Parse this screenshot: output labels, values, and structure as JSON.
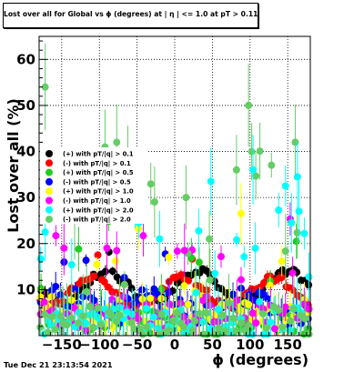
{
  "window": {
    "footer_timestamp": "Tue Dec 21 23:13:54 2021"
  },
  "chart_data": {
    "type": "scatter",
    "title": "Lost over all for Global vs ϕ (degrees) at | η | <= 1.0 at pT > 0.11",
    "xlabel": "ϕ (degrees)",
    "ylabel": "Lost over all (%)",
    "xlim": [
      -180,
      180
    ],
    "ylim": [
      0,
      65
    ],
    "x_ticks": [
      -150,
      -100,
      -50,
      0,
      50,
      100,
      150
    ],
    "x_tick_labels": [
      "−150",
      "−100",
      "−50",
      "0",
      "50",
      "100",
      "150"
    ],
    "y_ticks": [
      10,
      20,
      30,
      40,
      50,
      60
    ],
    "y_tick_labels": [
      "10",
      "20",
      "30",
      "40",
      "50",
      "60"
    ],
    "grid": true,
    "legend_position": "left-middle",
    "series": [
      {
        "name": "(+) with pT/|q| > 0.1",
        "color": "#000000",
        "n_points": 72,
        "base": 10.5,
        "amp": 3.5,
        "noise": 0.8,
        "outlier_prob": 0.03,
        "outlier_max": 7,
        "err": 1.2
      },
      {
        "name": "(-) with pT/|q| > 0.1",
        "color": "#ff0000",
        "n_points": 72,
        "base": 9.5,
        "amp": 3,
        "noise": 0.8,
        "outlier_prob": 0.03,
        "outlier_max": 7,
        "err": 1.2
      },
      {
        "name": "(+) with pT/|q| > 0.5",
        "color": "#22cc22",
        "n_points": 72,
        "base": 3.0,
        "amp": 1,
        "noise": 3,
        "outlier_prob": 0.15,
        "outlier_max": 22,
        "err": 4
      },
      {
        "name": "(-) with pT/|q| > 0.5",
        "color": "#0000ff",
        "n_points": 72,
        "base": 6.5,
        "amp": 2,
        "noise": 2.5,
        "outlier_prob": 0.08,
        "outlier_max": 12,
        "err": 2.5
      },
      {
        "name": "(+) with pT/|q| > 1.0",
        "color": "#ffff00",
        "n_points": 72,
        "base": 5.0,
        "amp": 1,
        "noise": 3,
        "outlier_prob": 0.12,
        "outlier_max": 18,
        "err": 3.5
      },
      {
        "name": "(-) with pT/|q| > 1.0",
        "color": "#ff00ff",
        "n_points": 72,
        "base": 5.0,
        "amp": 1,
        "noise": 3,
        "outlier_prob": 0.12,
        "outlier_max": 18,
        "err": 3.5
      },
      {
        "name": "(+) with pT/|q| > 2.0",
        "color": "#00ffff",
        "n_points": 72,
        "base": 3.0,
        "amp": 1,
        "noise": 3,
        "outlier_prob": 0.15,
        "outlier_max": 30,
        "err": 5
      },
      {
        "name": "(-) with pT/|q| > 2.0",
        "color": "#66cc66",
        "n_points": 72,
        "base": 2.5,
        "amp": 1,
        "noise": 3,
        "outlier_prob": 0.15,
        "outlier_max": 40,
        "err": 7
      }
    ],
    "highlight_points": [
      {
        "series": 7,
        "x": -172,
        "y": 54
      },
      {
        "series": 7,
        "x": 98,
        "y": 50
      },
      {
        "series": 7,
        "x": -77,
        "y": 42
      },
      {
        "series": 7,
        "x": 160,
        "y": 42
      },
      {
        "series": 6,
        "x": 104,
        "y": 36
      },
      {
        "series": 6,
        "x": 163,
        "y": 34.5
      },
      {
        "series": 7,
        "x": 82,
        "y": 36
      },
      {
        "series": 7,
        "x": 15,
        "y": 30
      },
      {
        "series": 6,
        "x": 48,
        "y": 33.5
      },
      {
        "series": 6,
        "x": 165,
        "y": 27
      },
      {
        "series": 4,
        "x": 88,
        "y": 26.5
      },
      {
        "series": 6,
        "x": 155,
        "y": 24.5
      },
      {
        "series": 6,
        "x": -20,
        "y": 21
      },
      {
        "series": 6,
        "x": -172,
        "y": 22.5
      },
      {
        "series": 7,
        "x": 46,
        "y": 21
      },
      {
        "series": 5,
        "x": 13,
        "y": 18.5
      },
      {
        "series": 5,
        "x": -90,
        "y": 19
      },
      {
        "series": 5,
        "x": -147,
        "y": 19
      }
    ]
  }
}
